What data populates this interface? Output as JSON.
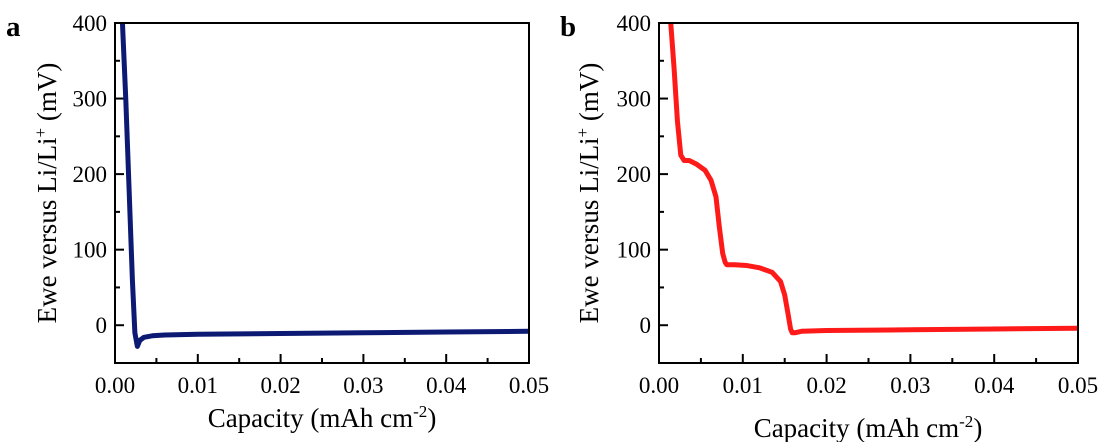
{
  "chart_data": [
    {
      "panel_label": "a",
      "type": "line",
      "xlabel_prefix": "Capacity (mAh cm",
      "xlabel_sup": "-2",
      "xlabel_suffix": ")",
      "ylabel_prefix": "Ewe versus Li/Li",
      "ylabel_sup": "+",
      "ylabel_suffix": " (mV)",
      "xlim": [
        0,
        0.05
      ],
      "ylim": [
        -50,
        400
      ],
      "xticks": [
        "0.00",
        "0.01",
        "0.02",
        "0.03",
        "0.04",
        "0.05"
      ],
      "yticks": [
        "0",
        "100",
        "200",
        "300",
        "400"
      ],
      "grid": false,
      "series": [
        {
          "color": "#0d1a73",
          "x": [
            0.0009,
            0.0013,
            0.0017,
            0.0021,
            0.0024,
            0.0027,
            0.003,
            0.0035,
            0.0045,
            0.006,
            0.01,
            0.02,
            0.03,
            0.04,
            0.05
          ],
          "y": [
            400,
            300,
            180,
            60,
            -10,
            -28,
            -20,
            -16,
            -14,
            -13,
            -12,
            -11,
            -10,
            -9,
            -8
          ]
        }
      ]
    },
    {
      "panel_label": "b",
      "type": "line",
      "xlabel_prefix": "Capacity (mAh cm",
      "xlabel_sup": "-2",
      "xlabel_suffix": ")",
      "ylabel_prefix": "Ewe versus Li/Li",
      "ylabel_sup": "+",
      "ylabel_suffix": " (mV)",
      "xlim": [
        0,
        0.05
      ],
      "ylim": [
        -50,
        400
      ],
      "xticks": [
        "0.00",
        "0.01",
        "0.02",
        "0.03",
        "0.04",
        "0.05"
      ],
      "yticks": [
        "0",
        "100",
        "200",
        "300",
        "400"
      ],
      "grid": false,
      "series": [
        {
          "color": "#ff1a1a",
          "x": [
            0.0014,
            0.0018,
            0.0022,
            0.0026,
            0.003,
            0.0036,
            0.0045,
            0.0055,
            0.0062,
            0.0068,
            0.0072,
            0.0076,
            0.0079,
            0.0081,
            0.009,
            0.0105,
            0.012,
            0.0135,
            0.0145,
            0.015,
            0.0154,
            0.0157,
            0.0159,
            0.0162,
            0.017,
            0.02,
            0.03,
            0.04,
            0.05
          ],
          "y": [
            400,
            340,
            270,
            225,
            218,
            218,
            213,
            205,
            192,
            170,
            130,
            95,
            83,
            80,
            80,
            79,
            76,
            70,
            58,
            40,
            15,
            -5,
            -10,
            -10,
            -8,
            -7,
            -6,
            -5,
            -4
          ]
        }
      ]
    }
  ]
}
